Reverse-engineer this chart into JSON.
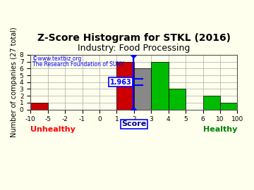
{
  "title": "Z-Score Histogram for STKL (2016)",
  "subtitle": "Industry: Food Processing",
  "ylabel": "Number of companies (27 total)",
  "xlabel_center": "Score",
  "xlabel_left": "Unhealthy",
  "xlabel_right": "Healthy",
  "watermark_line1": "©www.textbiz.org",
  "watermark_line2": "The Research Foundation of SUNY",
  "zscore_value": 1.963,
  "zscore_label": "1.963",
  "bin_edges": [
    -10,
    -5,
    -2,
    -1,
    0,
    1,
    2,
    3,
    4,
    5,
    6,
    10,
    100
  ],
  "bar_heights": [
    1,
    0,
    0,
    0,
    0,
    7,
    6,
    7,
    3,
    0,
    2,
    1
  ],
  "bar_colors": [
    "#cc0000",
    "#cc0000",
    "#cc0000",
    "#cc0000",
    "#cc0000",
    "#cc0000",
    "#888888",
    "#00bb00",
    "#00bb00",
    "#00bb00",
    "#00bb00",
    "#00bb00"
  ],
  "ylim": [
    0,
    8
  ],
  "yticks": [
    0,
    1,
    2,
    3,
    4,
    5,
    6,
    7,
    8
  ],
  "xtick_labels": [
    "-10",
    "-5",
    "-2",
    "-1",
    "0",
    "1",
    "2",
    "3",
    "4",
    "5",
    "6",
    "10",
    "100"
  ],
  "bg_color": "#ffffee",
  "grid_color": "#aaaaaa",
  "title_fontsize": 10,
  "subtitle_fontsize": 9,
  "axis_fontsize": 7,
  "tick_fontsize": 6.5
}
